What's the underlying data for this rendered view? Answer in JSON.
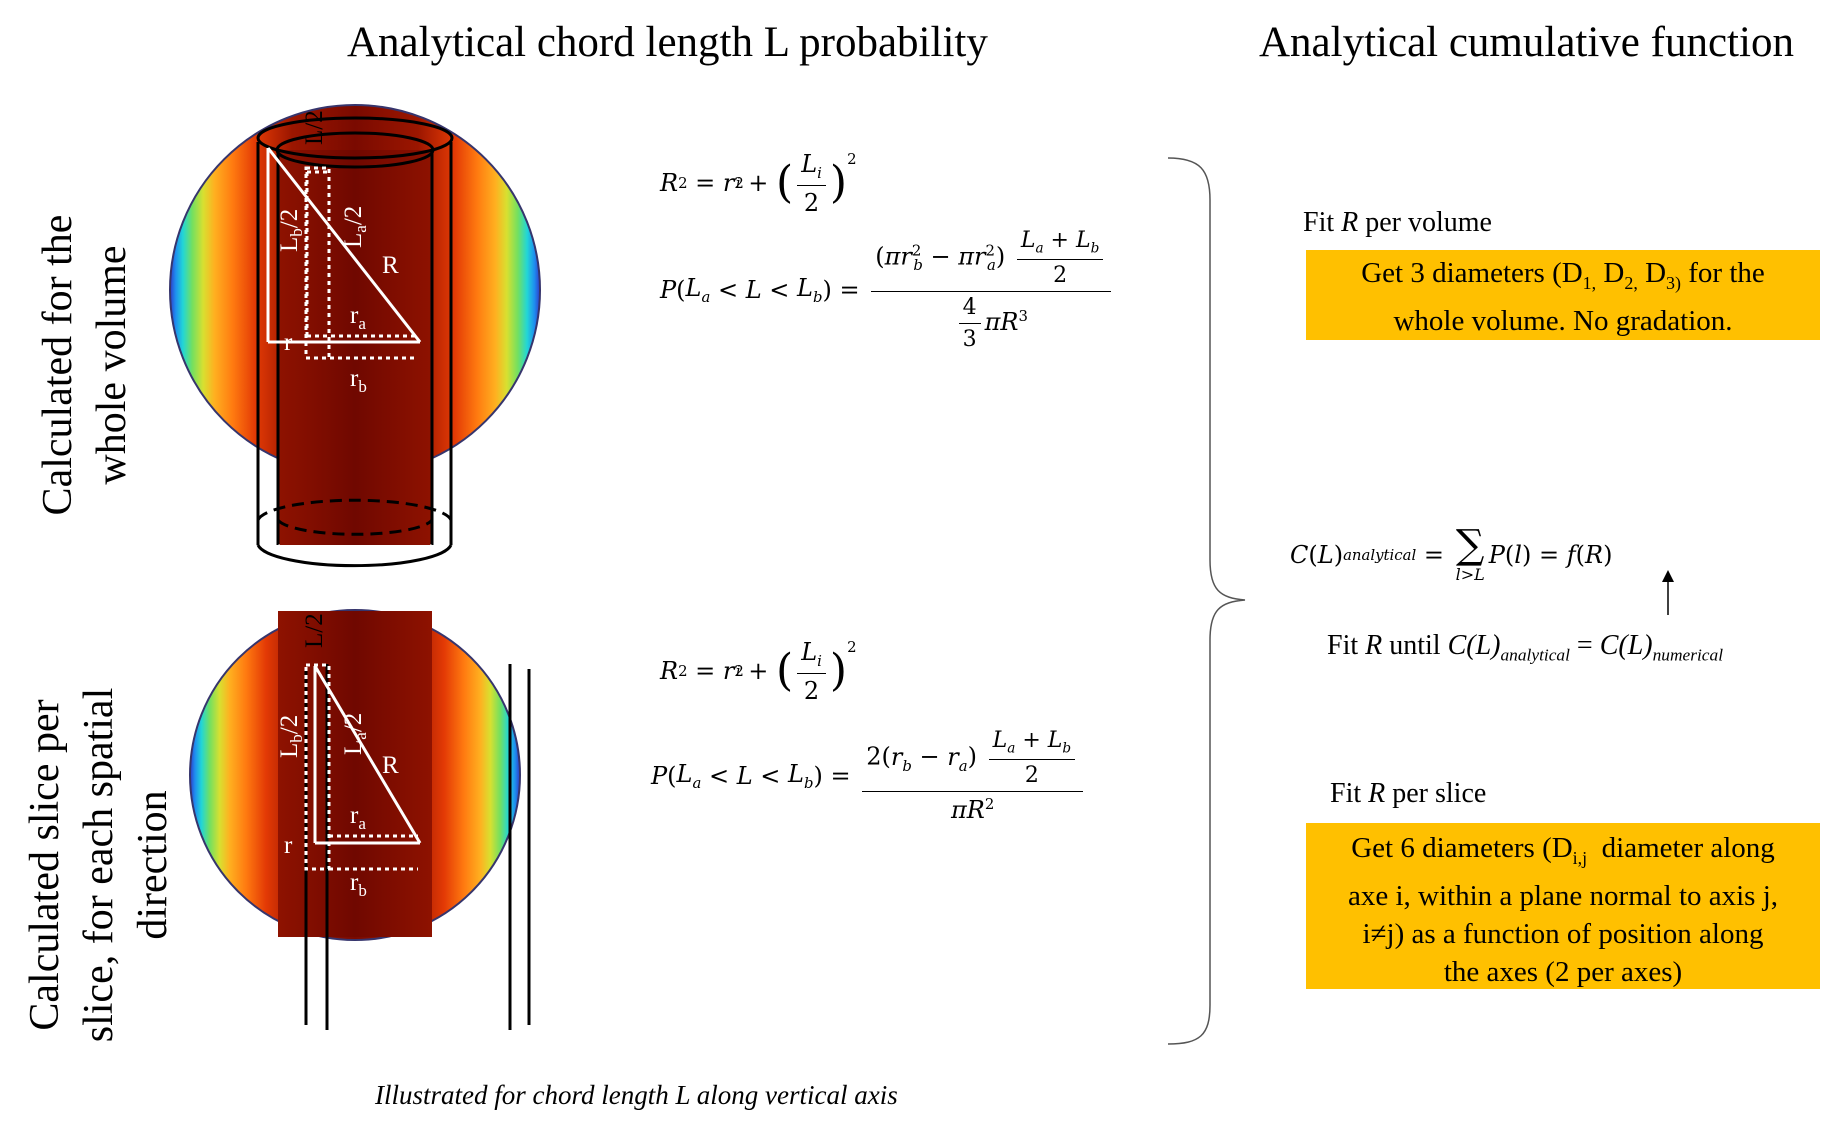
{
  "titles": {
    "probability": "Analytical chord length L probability",
    "cumulative": "Analytical cumulative function"
  },
  "row_labels": {
    "volume": [
      "Calculated for the",
      "whole volume"
    ],
    "slice": [
      "Calculated slice per",
      "slice, for each spatial",
      "direction"
    ]
  },
  "diagram_labels": {
    "half_L": "L/2",
    "Lb_half": "L",
    "Lb_sub": "b",
    "La_half": "L",
    "La_sub": "a",
    "half_suffix": "/2",
    "R": "R",
    "r": "r",
    "ra": "r",
    "ra_sub": "a",
    "rb": "r",
    "rb_sub": "b"
  },
  "equations": {
    "radius_relation": "R² = rᵢ² + (Lᵢ/2)²",
    "volume_probability": "P(Lₐ < L < L_b) = (πr_b² − πrₐ²)((Lₐ + L_b)/2) / ((4/3)πR³)",
    "slice_probability": "P(Lₐ < L < L_b) = 2(r_b − rₐ)((Lₐ + L_b)/2) / (πR²)",
    "cumulative": "C(L)_analytical = Σ_{l>L} P(l) = f(R)"
  },
  "fit_volume": {
    "title_pre": "Fit ",
    "title_var": "R",
    "title_post": " per volume",
    "box_line1_pre": "Get 3 diameters (D",
    "box_line1_s1": "1,",
    "box_line1_m1": " D",
    "box_line1_s2": "2,",
    "box_line1_m2": " D",
    "box_line1_s3": "3)",
    "box_line1_post": " for the",
    "box_line2": "whole volume. No gradation."
  },
  "fit_until": {
    "pre": "Fit ",
    "var": "R",
    "mid": " until ",
    "lhs": "C(L)",
    "lhs_sub": "analytical",
    "eq": " = ",
    "rhs": "C(L)",
    "rhs_sub": "numerical"
  },
  "fit_slice": {
    "title_pre": "Fit ",
    "title_var": "R",
    "title_post": " per slice",
    "box_line1_pre": "Get 6 diameters (D",
    "box_line1_sub": "i,j",
    "box_line1_post": "  diameter along",
    "box_line2": "axe i, within a plane normal to axis j,",
    "box_line3": "i≠j) as a function of position along",
    "box_line4": "the axes (2 per axes)"
  },
  "caption": "Illustrated for chord length L along vertical axis",
  "colors": {
    "box": "#ffc000",
    "core": "#7a0a00",
    "sphere_edge": "#36356d"
  }
}
